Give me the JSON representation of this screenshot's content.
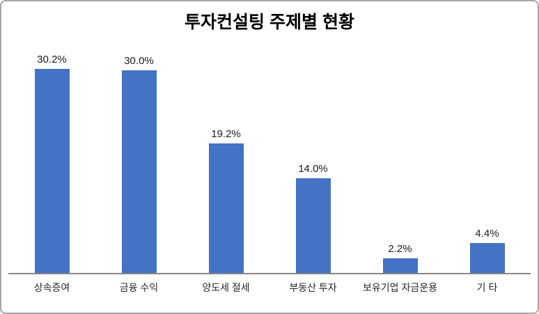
{
  "chart": {
    "title": "투자컨설팅 주제별 현황"
  },
  "chart_data": {
    "type": "bar",
    "title": "투자컨설팅 주제별 현황",
    "categories": [
      "상속증여",
      "금융 수익",
      "양도세 절세",
      "부동산 투자",
      "보유기업 자금운용",
      "기 타"
    ],
    "values": [
      30.2,
      30.0,
      19.2,
      14.0,
      2.2,
      4.4
    ],
    "value_labels": [
      "30.2%",
      "30.0%",
      "19.2%",
      "14.0%",
      "2.2%",
      "4.4%"
    ],
    "unit": "%",
    "xlabel": "",
    "ylabel": "",
    "ylim": [
      0,
      35
    ],
    "grid": false,
    "legend": "none",
    "data_labels_shown": true,
    "bar_color": "#4472C4",
    "axis_line_color": "#858585",
    "title_color": "#000000",
    "label_color": "#262626"
  }
}
